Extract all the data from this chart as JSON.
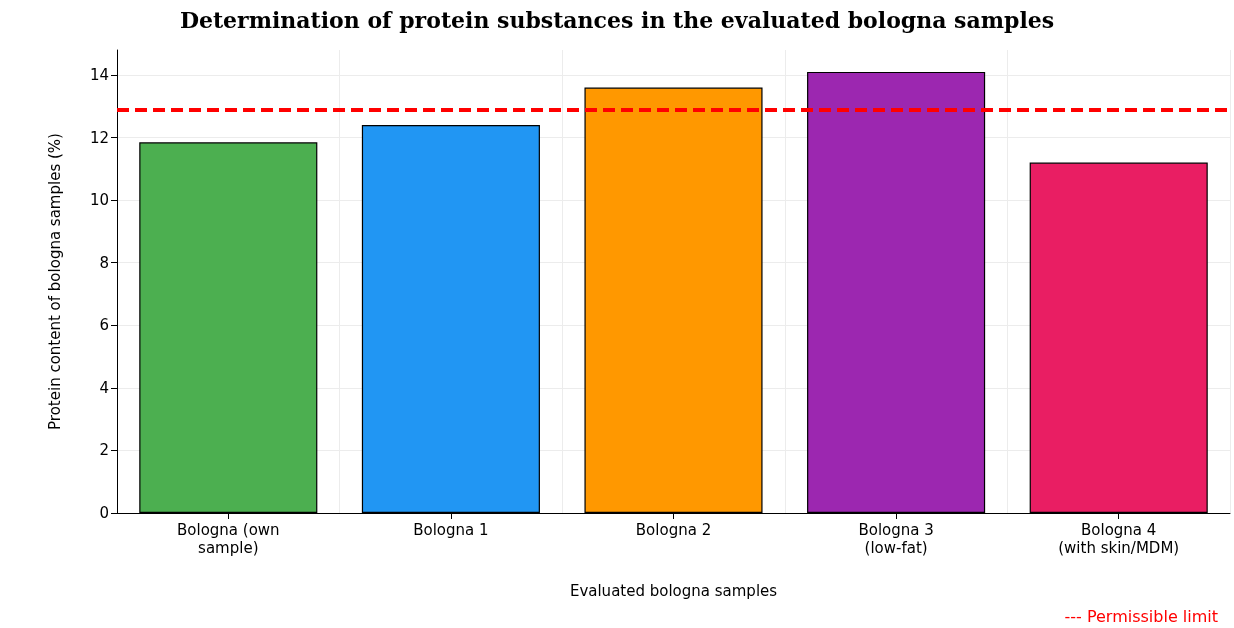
{
  "chart_data": {
    "type": "bar",
    "title": "Determination of protein substances in the evaluated bologna samples",
    "xlabel": "Evaluated bologna samples",
    "ylabel": "Protein content of bologna samples (%)",
    "categories": [
      "Bologna (own\nsample)",
      "Bologna 1",
      "Bologna 2",
      "Bologna 3\n(low-fat)",
      "Bologna 4\n(with skin/MDM)"
    ],
    "values": [
      11.85,
      12.4,
      13.6,
      14.1,
      11.2
    ],
    "colors": [
      "#4caf50",
      "#2196f3",
      "#ff9800",
      "#9c27b0",
      "#e91e63"
    ],
    "ylim": [
      0,
      14.8
    ],
    "yticks": [
      0,
      2,
      4,
      6,
      8,
      10,
      12,
      14
    ],
    "grid": true,
    "ref_lines": [
      {
        "axis": "y",
        "value": 12.9,
        "label": "--- Permissible limit",
        "color": "#ff0000",
        "line_style": "dashed"
      }
    ]
  }
}
